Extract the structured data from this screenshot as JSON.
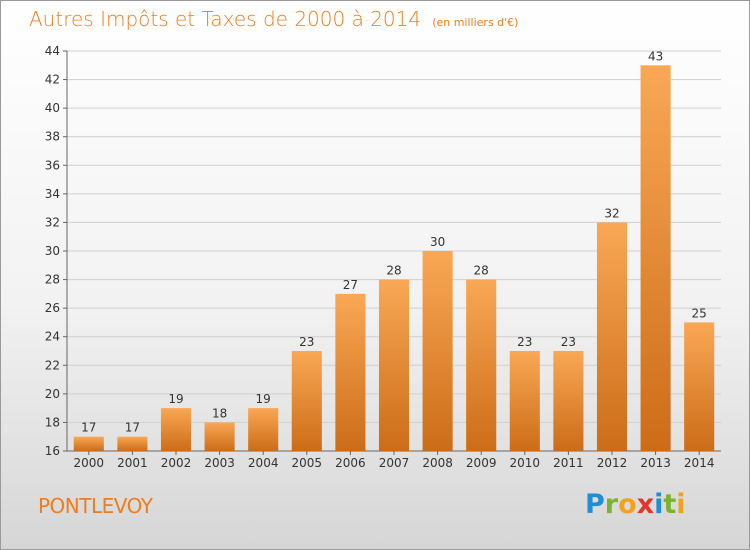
{
  "title": "Autres Impôts et Taxes de 2000 à 2014",
  "subtitle": "(en milliers d'€)",
  "commune": "PONTLEVOY",
  "logo": {
    "letters": [
      {
        "ch": "P",
        "color": "#1d8fd6"
      },
      {
        "ch": "r",
        "color": "#79b42d"
      },
      {
        "ch": "o",
        "color": "#f3a21c"
      },
      {
        "ch": "x",
        "color": "#e2362c"
      },
      {
        "ch": "i",
        "color": "#1d8fd6"
      },
      {
        "ch": "t",
        "color": "#79b42d"
      },
      {
        "ch": "i",
        "color": "#f3a21c"
      }
    ]
  },
  "colors": {
    "accent": "#f07c1c",
    "bar_light": "#f7a04a",
    "bar_dark": "#c96a18",
    "grid": "#cccccc",
    "text": "#333333"
  },
  "chart_data": {
    "type": "bar",
    "categories": [
      "2000",
      "2001",
      "2002",
      "2003",
      "2004",
      "2005",
      "2006",
      "2007",
      "2008",
      "2009",
      "2010",
      "2011",
      "2012",
      "2013",
      "2014"
    ],
    "values": [
      17,
      17,
      19,
      18,
      19,
      23,
      27,
      28,
      30,
      28,
      23,
      23,
      32,
      43,
      25
    ],
    "title": "Autres Impôts et Taxes de 2000 à 2014",
    "subtitle": "(en milliers d'€)",
    "xlabel": "",
    "ylabel": "",
    "ylim": [
      16,
      44
    ],
    "yticks": [
      16,
      18,
      20,
      22,
      24,
      26,
      28,
      30,
      32,
      34,
      36,
      38,
      40,
      42,
      44
    ],
    "grid": true,
    "legend": "none"
  }
}
